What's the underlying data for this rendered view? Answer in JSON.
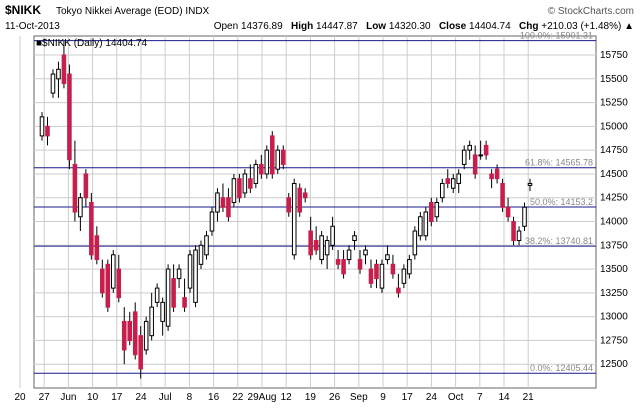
{
  "header": {
    "symbol": "$NIKK",
    "name": "Tokyo Nikkei Average (EOD)",
    "exchange": "INDX",
    "brand": "© StockCharts.com",
    "date": "11-Oct-2013",
    "open_label": "Open",
    "open": "14376.89",
    "high_label": "High",
    "high": "14447.87",
    "low_label": "Low",
    "low": "14320.30",
    "close_label": "Close",
    "close": "14404.74",
    "chg_label": "Chg",
    "chg": "+210.03 (+1.48%)",
    "chg_arrow": "▲"
  },
  "legend": {
    "label": "■$NIKK (Daily) 14404.74"
  },
  "colors": {
    "up": "#ffffff",
    "down": "#c81e4b",
    "wick": "#000000",
    "fib": "#1a1a8c",
    "grid": "#cccccc",
    "fib_text": "#888888"
  },
  "chart_data": {
    "type": "candlestick",
    "ylim": [
      12250,
      15950
    ],
    "y_ticks": [
      12500,
      12750,
      13000,
      13250,
      13500,
      13750,
      14000,
      14250,
      14500,
      14750,
      15000,
      15250,
      15500,
      15750
    ],
    "x_ticks": [
      "20",
      "27",
      "Jun",
      "10",
      "17",
      "24",
      "Jul",
      "8",
      "16",
      "22",
      "29Aug",
      "12",
      "19",
      "26",
      "Sep",
      "9",
      "17",
      "24",
      "Oct",
      "7",
      "14",
      "21"
    ],
    "fib_levels": [
      {
        "label": "100.0%: 15901.31",
        "value": 15901.31
      },
      {
        "label": "61.8%: 14565.78",
        "value": 14565.78
      },
      {
        "label": "50.0%: 14153.2",
        "value": 14153.2
      },
      {
        "label": "38.2%: 13740.81",
        "value": 13740.81
      },
      {
        "label": "0.0%: 12405.44",
        "value": 12405.44
      }
    ],
    "candles": [
      {
        "o": 14900,
        "h": 15150,
        "l": 14850,
        "c": 15100
      },
      {
        "o": 15000,
        "h": 15100,
        "l": 14800,
        "c": 14900
      },
      {
        "o": 15350,
        "h": 15600,
        "l": 15300,
        "c": 15550
      },
      {
        "o": 15500,
        "h": 15680,
        "l": 15300,
        "c": 15600
      },
      {
        "o": 15750,
        "h": 15900,
        "l": 15400,
        "c": 15450
      },
      {
        "o": 15550,
        "h": 15650,
        "l": 14550,
        "c": 14650
      },
      {
        "o": 14600,
        "h": 14850,
        "l": 14000,
        "c": 14100
      },
      {
        "o": 14050,
        "h": 14300,
        "l": 13900,
        "c": 14250
      },
      {
        "o": 14500,
        "h": 14550,
        "l": 14150,
        "c": 14250
      },
      {
        "o": 14200,
        "h": 14300,
        "l": 13600,
        "c": 13650
      },
      {
        "o": 13850,
        "h": 13950,
        "l": 13550,
        "c": 13600
      },
      {
        "o": 13500,
        "h": 13600,
        "l": 13200,
        "c": 13250
      },
      {
        "o": 13550,
        "h": 13600,
        "l": 13050,
        "c": 13100
      },
      {
        "o": 13300,
        "h": 13700,
        "l": 13250,
        "c": 13650
      },
      {
        "o": 13500,
        "h": 13650,
        "l": 13150,
        "c": 13200
      },
      {
        "o": 12950,
        "h": 13100,
        "l": 12500,
        "c": 12650
      },
      {
        "o": 12950,
        "h": 13050,
        "l": 12700,
        "c": 12750
      },
      {
        "o": 13050,
        "h": 13150,
        "l": 12550,
        "c": 12600
      },
      {
        "o": 12800,
        "h": 12900,
        "l": 12350,
        "c": 12450
      },
      {
        "o": 12650,
        "h": 13000,
        "l": 12600,
        "c": 12950
      },
      {
        "o": 12800,
        "h": 13250,
        "l": 12750,
        "c": 13100
      },
      {
        "o": 13150,
        "h": 13350,
        "l": 13100,
        "c": 13300
      },
      {
        "o": 12950,
        "h": 13200,
        "l": 12800,
        "c": 13150
      },
      {
        "o": 12900,
        "h": 13550,
        "l": 12850,
        "c": 13500
      },
      {
        "o": 13400,
        "h": 13550,
        "l": 13050,
        "c": 13100
      },
      {
        "o": 13400,
        "h": 13550,
        "l": 13300,
        "c": 13500
      },
      {
        "o": 13200,
        "h": 13400,
        "l": 13050,
        "c": 13100
      },
      {
        "o": 13300,
        "h": 13700,
        "l": 13250,
        "c": 13650
      },
      {
        "o": 13150,
        "h": 13750,
        "l": 13100,
        "c": 13700
      },
      {
        "o": 13550,
        "h": 13800,
        "l": 13500,
        "c": 13750
      },
      {
        "o": 13650,
        "h": 13900,
        "l": 13600,
        "c": 13850
      },
      {
        "o": 13900,
        "h": 14150,
        "l": 13850,
        "c": 14100
      },
      {
        "o": 14100,
        "h": 14350,
        "l": 14000,
        "c": 14300
      },
      {
        "o": 14250,
        "h": 14400,
        "l": 14100,
        "c": 14150
      },
      {
        "o": 14250,
        "h": 14350,
        "l": 14000,
        "c": 14050
      },
      {
        "o": 14200,
        "h": 14500,
        "l": 14150,
        "c": 14450
      },
      {
        "o": 14450,
        "h": 14500,
        "l": 14200,
        "c": 14250
      },
      {
        "o": 14300,
        "h": 14550,
        "l": 14250,
        "c": 14500
      },
      {
        "o": 14450,
        "h": 14600,
        "l": 14300,
        "c": 14350
      },
      {
        "o": 14400,
        "h": 14650,
        "l": 14350,
        "c": 14600
      },
      {
        "o": 14600,
        "h": 14700,
        "l": 14450,
        "c": 14500
      },
      {
        "o": 14500,
        "h": 14800,
        "l": 14450,
        "c": 14750
      },
      {
        "o": 14900,
        "h": 14950,
        "l": 14450,
        "c": 14500
      },
      {
        "o": 14550,
        "h": 14800,
        "l": 14500,
        "c": 14750
      },
      {
        "o": 14750,
        "h": 14800,
        "l": 14550,
        "c": 14600
      },
      {
        "o": 14250,
        "h": 14300,
        "l": 14050,
        "c": 14100
      },
      {
        "o": 13650,
        "h": 14450,
        "l": 13600,
        "c": 14400
      },
      {
        "o": 14350,
        "h": 14400,
        "l": 14050,
        "c": 14100
      },
      {
        "o": 14300,
        "h": 14350,
        "l": 14200,
        "c": 14250
      },
      {
        "o": 13900,
        "h": 14050,
        "l": 13600,
        "c": 13650
      },
      {
        "o": 13800,
        "h": 13950,
        "l": 13650,
        "c": 13700
      },
      {
        "o": 13600,
        "h": 13900,
        "l": 13550,
        "c": 13850
      },
      {
        "o": 13650,
        "h": 13850,
        "l": 13500,
        "c": 13800
      },
      {
        "o": 13750,
        "h": 14050,
        "l": 13700,
        "c": 13950
      },
      {
        "o": 13600,
        "h": 13700,
        "l": 13500,
        "c": 13550
      },
      {
        "o": 13600,
        "h": 13700,
        "l": 13400,
        "c": 13450
      },
      {
        "o": 13600,
        "h": 13750,
        "l": 13550,
        "c": 13700
      },
      {
        "o": 13800,
        "h": 13900,
        "l": 13700,
        "c": 13850
      },
      {
        "o": 13600,
        "h": 13700,
        "l": 13450,
        "c": 13500
      },
      {
        "o": 13650,
        "h": 13750,
        "l": 13550,
        "c": 13700
      },
      {
        "o": 13500,
        "h": 13600,
        "l": 13300,
        "c": 13350
      },
      {
        "o": 13550,
        "h": 13600,
        "l": 13300,
        "c": 13400
      },
      {
        "o": 13300,
        "h": 13600,
        "l": 13250,
        "c": 13550
      },
      {
        "o": 13600,
        "h": 13750,
        "l": 13550,
        "c": 13650
      },
      {
        "o": 13550,
        "h": 13650,
        "l": 13400,
        "c": 13450
      },
      {
        "o": 13300,
        "h": 13450,
        "l": 13200,
        "c": 13250
      },
      {
        "o": 13350,
        "h": 13550,
        "l": 13300,
        "c": 13500
      },
      {
        "o": 13450,
        "h": 13650,
        "l": 13400,
        "c": 13600
      },
      {
        "o": 13650,
        "h": 13950,
        "l": 13600,
        "c": 13900
      },
      {
        "o": 13850,
        "h": 14100,
        "l": 13800,
        "c": 14050
      },
      {
        "o": 13850,
        "h": 14150,
        "l": 13800,
        "c": 14100
      },
      {
        "o": 14200,
        "h": 14250,
        "l": 13950,
        "c": 14000
      },
      {
        "o": 14050,
        "h": 14250,
        "l": 14000,
        "c": 14200
      },
      {
        "o": 14250,
        "h": 14450,
        "l": 14200,
        "c": 14400
      },
      {
        "o": 14450,
        "h": 14550,
        "l": 14350,
        "c": 14400
      },
      {
        "o": 14350,
        "h": 14500,
        "l": 14300,
        "c": 14450
      },
      {
        "o": 14400,
        "h": 14550,
        "l": 14300,
        "c": 14500
      },
      {
        "o": 14600,
        "h": 14800,
        "l": 14550,
        "c": 14750
      },
      {
        "o": 14750,
        "h": 14850,
        "l": 14650,
        "c": 14800
      },
      {
        "o": 14700,
        "h": 14800,
        "l": 14450,
        "c": 14500
      },
      {
        "o": 14700,
        "h": 14850,
        "l": 14650,
        "c": 14700
      },
      {
        "o": 14800,
        "h": 14850,
        "l": 14650,
        "c": 14700
      },
      {
        "o": 14500,
        "h": 14550,
        "l": 14350,
        "c": 14450
      },
      {
        "o": 14550,
        "h": 14600,
        "l": 14400,
        "c": 14450
      },
      {
        "o": 14400,
        "h": 14450,
        "l": 14100,
        "c": 14150
      },
      {
        "o": 14150,
        "h": 14250,
        "l": 14000,
        "c": 14050
      },
      {
        "o": 14000,
        "h": 14050,
        "l": 13750,
        "c": 13800
      },
      {
        "o": 13800,
        "h": 13950,
        "l": 13750,
        "c": 13900
      },
      {
        "o": 13950,
        "h": 14200,
        "l": 13900,
        "c": 14150
      },
      {
        "o": 14380,
        "h": 14450,
        "l": 14320,
        "c": 14400
      }
    ]
  }
}
